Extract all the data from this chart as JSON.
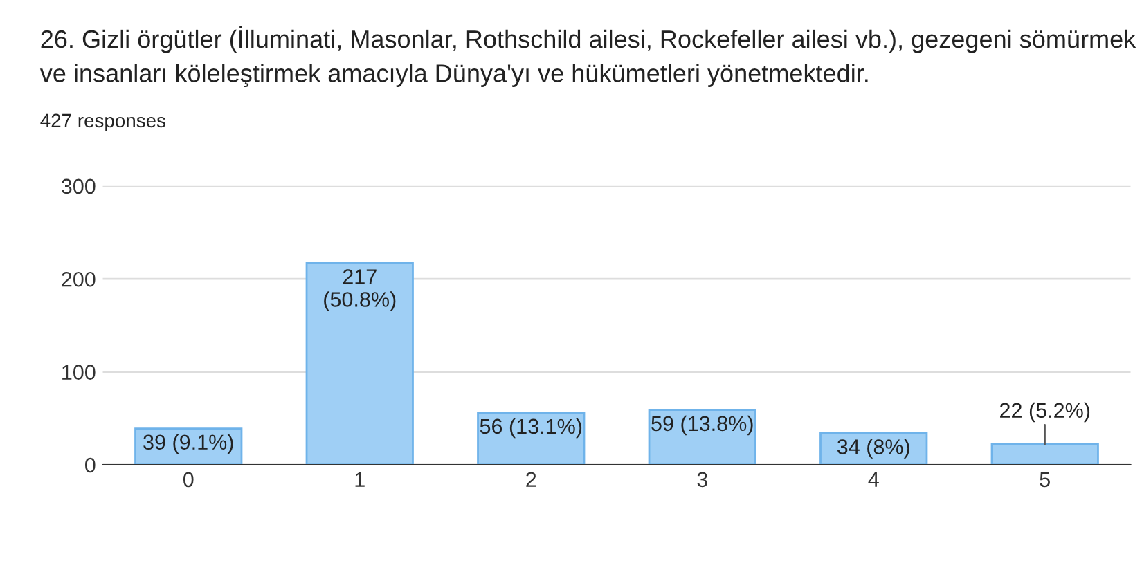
{
  "chart_data": {
    "type": "bar",
    "title": "26. Gizli örgütler (İlluminati, Masonlar, Rothschild ailesi, Rockefeller ailesi vb.), gezegeni sömürmek\nve insanları köleleştirmek amacıyla Dünya'yı ve hükümetleri yönetmektedir.",
    "subtitle": "427 responses",
    "categories": [
      "0",
      "1",
      "2",
      "3",
      "4",
      "5"
    ],
    "values": [
      39,
      217,
      56,
      59,
      34,
      22
    ],
    "value_labels": [
      "39 (9.1%)",
      "217\n(50.8%)",
      "56 (13.1%)",
      "59 (13.8%)",
      "34 (8%)",
      "22 (5.2%)"
    ],
    "color": "#9fcff5",
    "ylim": [
      0,
      300
    ],
    "yticks": [
      0,
      100,
      200,
      300
    ],
    "grid": "y"
  }
}
